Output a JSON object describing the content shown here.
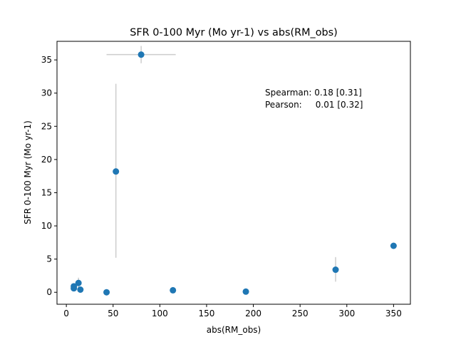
{
  "chart_data": {
    "type": "scatter",
    "title": "SFR 0-100 Myr (Mo yr-1) vs abs(RM_obs)",
    "xlabel": "abs(RM_obs)",
    "ylabel": "SFR 0-100 Myr (Mo yr-1)",
    "xlim": [
      -10,
      368
    ],
    "ylim": [
      -1.8,
      37.8
    ],
    "xticks": [
      0,
      50,
      100,
      150,
      200,
      250,
      300,
      350
    ],
    "yticks": [
      0,
      5,
      10,
      15,
      20,
      25,
      30,
      35
    ],
    "grid": false,
    "legend": "none",
    "marker_color": "#1f77b4",
    "errorbar_color": "#cccccc",
    "points": [
      {
        "x": 8,
        "y": 0.6
      },
      {
        "x": 8,
        "y": 0.9
      },
      {
        "x": 13,
        "y": 1.4,
        "y_err": [
          0.8,
          0.8
        ]
      },
      {
        "x": 15,
        "y": 0.4
      },
      {
        "x": 43,
        "y": 0.0
      },
      {
        "x": 53,
        "y": 18.2,
        "y_err": [
          13.0,
          13.2
        ]
      },
      {
        "x": 80,
        "y": 35.8,
        "x_err": [
          37,
          37
        ],
        "y_err": [
          1.3,
          1.3
        ]
      },
      {
        "x": 114,
        "y": 0.3
      },
      {
        "x": 192,
        "y": 0.1
      },
      {
        "x": 288,
        "y": 3.4,
        "y_err": [
          1.8,
          1.9
        ]
      },
      {
        "x": 350,
        "y": 7.0
      }
    ],
    "annotations": [
      "Spearman: 0.18 [0.31]",
      "Pearson:     0.01 [0.32]"
    ]
  }
}
